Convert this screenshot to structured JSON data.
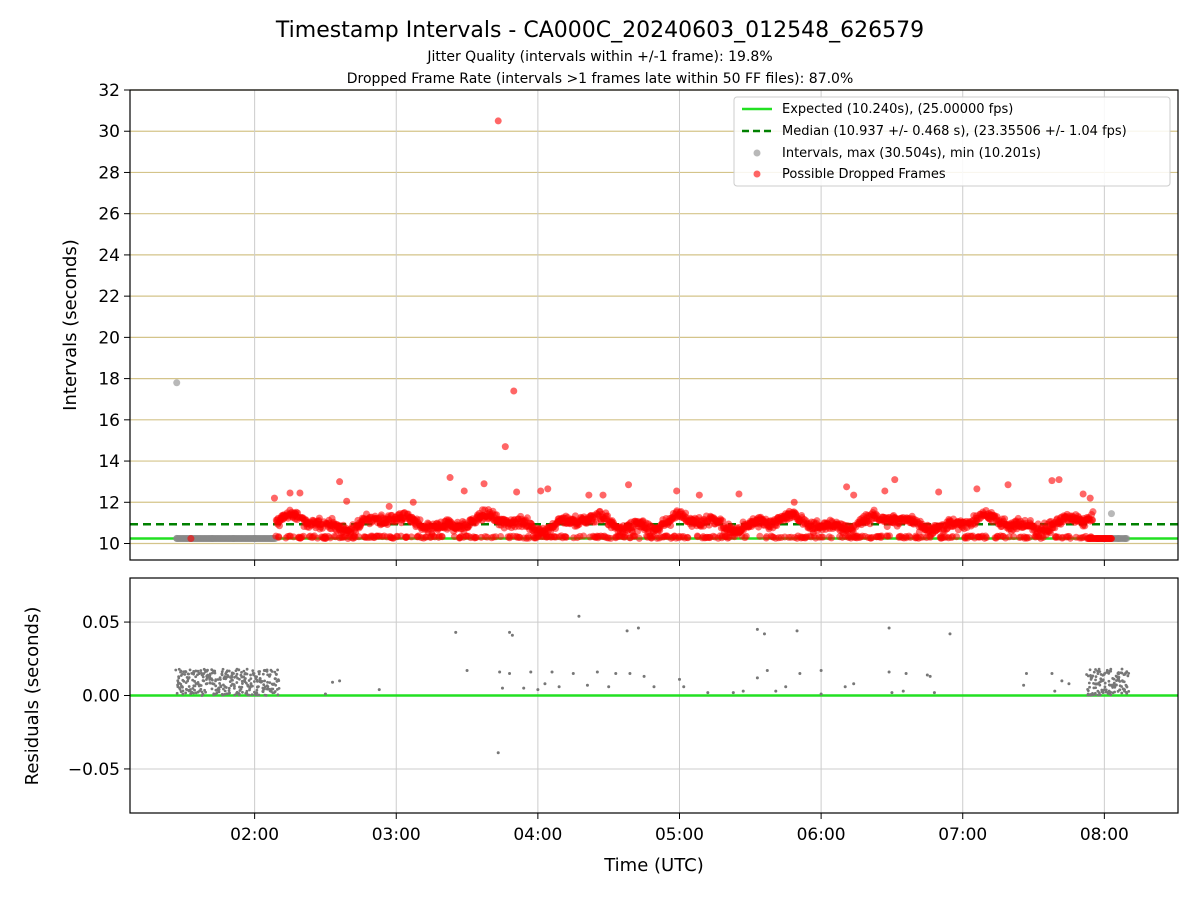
{
  "chart_data": [
    {
      "type": "scatter",
      "title": "Timestamp Intervals - CA000C_20240603_012548_626579",
      "subtitles": [
        "Jitter Quality (intervals within +/-1 frame): 19.8%",
        "Dropped Frame Rate (intervals >1 frames late within 50 FF files): 87.0%"
      ],
      "ylabel": "Intervals (seconds)",
      "ylim": [
        9.2,
        32
      ],
      "yticks": [
        10,
        12,
        14,
        16,
        18,
        20,
        22,
        24,
        26,
        28,
        30,
        32
      ],
      "xlim_hours": [
        1.12,
        8.52
      ],
      "grid": "on",
      "legend_position": "top-right",
      "expected_line": {
        "label": "Expected (10.240s), (25.00000 fps)",
        "value": 10.24,
        "color": "#22e022"
      },
      "median_line": {
        "label": "Median (10.937 +/- 0.468 s), (23.35506 +/- 1.04 fps)",
        "value": 10.937,
        "color": "#008000"
      },
      "series": [
        {
          "name": "Intervals, max (30.504s), min (10.201s)",
          "color": "#888888",
          "points": [
            [
              1.45,
              17.8
            ],
            [
              1.45,
              10.25
            ],
            [
              1.55,
              10.24
            ],
            [
              1.7,
              10.24
            ],
            [
              1.85,
              10.24
            ],
            [
              2.0,
              10.24
            ],
            [
              2.12,
              10.24
            ],
            [
              8.05,
              11.45
            ],
            [
              8.1,
              10.24
            ],
            [
              8.15,
              10.24
            ]
          ]
        },
        {
          "name": "Possible Dropped Frames",
          "color": "#ff0000",
          "points": [
            [
              3.72,
              30.5
            ],
            [
              3.83,
              17.4
            ],
            [
              3.77,
              14.7
            ],
            [
              3.38,
              13.2
            ],
            [
              2.6,
              13.0
            ],
            [
              3.62,
              12.9
            ],
            [
              4.64,
              12.85
            ],
            [
              6.18,
              12.75
            ],
            [
              6.52,
              13.1
            ],
            [
              7.63,
              13.05
            ],
            [
              7.68,
              13.1
            ],
            [
              4.07,
              12.65
            ],
            [
              7.32,
              12.85
            ],
            [
              4.98,
              12.55
            ],
            [
              2.14,
              12.2
            ],
            [
              2.25,
              12.45
            ],
            [
              2.32,
              12.45
            ],
            [
              3.48,
              12.55
            ],
            [
              3.85,
              12.5
            ],
            [
              4.36,
              12.35
            ],
            [
              4.46,
              12.35
            ],
            [
              5.14,
              12.35
            ],
            [
              5.81,
              12.0
            ],
            [
              6.45,
              12.55
            ],
            [
              6.83,
              12.5
            ],
            [
              7.85,
              12.4
            ],
            [
              7.9,
              12.2
            ],
            [
              7.1,
              12.65
            ],
            [
              2.65,
              12.05
            ],
            [
              4.02,
              12.55
            ],
            [
              3.12,
              12.0
            ],
            [
              2.95,
              11.8
            ],
            [
              5.42,
              12.4
            ],
            [
              6.23,
              12.35
            ],
            [
              1.55,
              10.24
            ],
            [
              2.17,
              10.3
            ],
            [
              2.5,
              10.25
            ],
            [
              2.6,
              10.28
            ],
            [
              3.3,
              10.3
            ],
            [
              3.45,
              10.3
            ],
            [
              3.6,
              10.3
            ],
            [
              3.8,
              10.28
            ],
            [
              4.2,
              10.3
            ],
            [
              4.55,
              10.28
            ],
            [
              4.95,
              10.3
            ],
            [
              5.35,
              10.3
            ],
            [
              5.7,
              10.28
            ],
            [
              6.15,
              10.3
            ],
            [
              6.55,
              10.3
            ],
            [
              6.9,
              10.28
            ],
            [
              7.45,
              10.3
            ],
            [
              7.85,
              10.3
            ],
            [
              7.95,
              10.24
            ],
            [
              8.0,
              10.24
            ],
            [
              8.05,
              10.24
            ]
          ]
        }
      ],
      "band_series": {
        "name": "Possible Dropped Frames",
        "x_range": [
          2.15,
          7.92
        ],
        "y_center": 11.0,
        "y_spread": 0.55
      }
    },
    {
      "type": "scatter",
      "xlabel": "Time (UTC)",
      "ylabel": "Residuals (seconds)",
      "ylim": [
        -0.08,
        0.08
      ],
      "yticks": [
        -0.05,
        0.0,
        0.05
      ],
      "ytick_labels": [
        "−0.05",
        "0.00",
        "0.05"
      ],
      "xticks_hours": [
        2,
        3,
        4,
        5,
        6,
        7,
        8
      ],
      "xtick_labels": [
        "02:00",
        "03:00",
        "04:00",
        "05:00",
        "06:00",
        "07:00",
        "08:00"
      ],
      "grid": "on",
      "zero_line_color": "#22e022",
      "series": [
        {
          "name": "",
          "color": "#777777",
          "points": [
            [
              3.42,
              0.043
            ],
            [
              3.8,
              0.043
            ],
            [
              3.82,
              0.041
            ],
            [
              4.29,
              0.054
            ],
            [
              4.63,
              0.044
            ],
            [
              4.71,
              0.046
            ],
            [
              5.55,
              0.045
            ],
            [
              5.6,
              0.042
            ],
            [
              5.83,
              0.044
            ],
            [
              6.48,
              0.046
            ],
            [
              6.91,
              0.042
            ],
            [
              3.72,
              -0.039
            ],
            [
              3.5,
              0.017
            ],
            [
              3.73,
              0.016
            ],
            [
              3.8,
              0.015
            ],
            [
              3.95,
              0.016
            ],
            [
              4.1,
              0.016
            ],
            [
              4.25,
              0.015
            ],
            [
              4.42,
              0.016
            ],
            [
              4.55,
              0.015
            ],
            [
              4.65,
              0.015
            ],
            [
              5.0,
              0.011
            ],
            [
              5.62,
              0.017
            ],
            [
              5.85,
              0.015
            ],
            [
              6.0,
              0.017
            ],
            [
              6.48,
              0.016
            ],
            [
              6.6,
              0.015
            ],
            [
              6.75,
              0.014
            ],
            [
              7.63,
              0.015
            ],
            [
              2.5,
              0.001
            ],
            [
              2.55,
              0.009
            ],
            [
              2.6,
              0.01
            ],
            [
              2.88,
              0.004
            ],
            [
              3.75,
              0.005
            ],
            [
              3.9,
              0.005
            ],
            [
              4.0,
              0.004
            ],
            [
              4.05,
              0.008
            ],
            [
              4.15,
              0.006
            ],
            [
              4.35,
              0.007
            ],
            [
              4.5,
              0.006
            ],
            [
              4.75,
              0.013
            ],
            [
              4.82,
              0.006
            ],
            [
              5.03,
              0.006
            ],
            [
              5.2,
              0.002
            ],
            [
              5.38,
              0.002
            ],
            [
              5.45,
              0.003
            ],
            [
              5.55,
              0.012
            ],
            [
              5.68,
              0.003
            ],
            [
              5.75,
              0.006
            ],
            [
              6.0,
              0.001
            ],
            [
              6.17,
              0.006
            ],
            [
              6.23,
              0.008
            ],
            [
              6.5,
              0.002
            ],
            [
              6.58,
              0.003
            ],
            [
              6.77,
              0.013
            ],
            [
              6.8,
              0.002
            ],
            [
              7.43,
              0.007
            ],
            [
              7.65,
              0.003
            ],
            [
              7.7,
              0.01
            ],
            [
              7.75,
              0.008
            ],
            [
              7.45,
              0.015
            ]
          ]
        }
      ],
      "clusters": [
        {
          "x_range": [
            1.45,
            2.17
          ],
          "y_range": [
            0.0,
            0.018
          ]
        },
        {
          "x_range": [
            7.88,
            8.17
          ],
          "y_range": [
            0.0,
            0.018
          ]
        }
      ]
    }
  ],
  "legend": {
    "expected": "Expected (10.240s), (25.00000 fps)",
    "median": "Median (10.937 +/- 0.468 s), (23.35506 +/- 1.04 fps)",
    "intervals": "Intervals, max (30.504s), min (10.201s)",
    "dropped": "Possible Dropped Frames"
  },
  "colors": {
    "expected": "#22e022",
    "median": "#008000",
    "intervals": "#888888",
    "dropped": "#ff0000",
    "hgrid_top": "#d4c48a",
    "grid": "#cccccc"
  }
}
